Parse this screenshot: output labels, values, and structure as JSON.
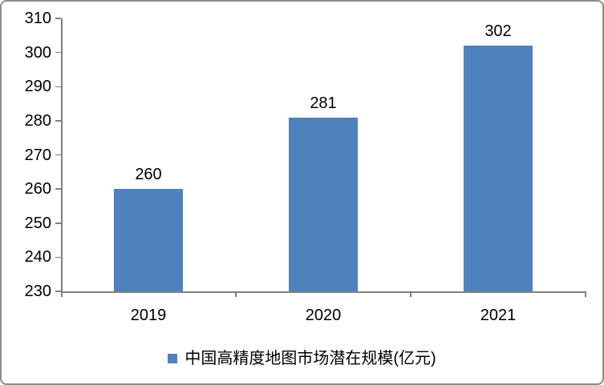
{
  "chart_data": {
    "type": "bar",
    "title": "",
    "categories": [
      "2019",
      "2020",
      "2021"
    ],
    "values": [
      260,
      281,
      302
    ],
    "data_labels": [
      "260",
      "281",
      "302"
    ],
    "legend": "中国高精度地图市场潜在规模(亿元)",
    "legend_position": "bottom-center",
    "xlabel": "",
    "ylabel": "",
    "ylim": [
      230,
      310
    ],
    "ytick_step": 10,
    "yticks": [
      230,
      240,
      250,
      260,
      270,
      280,
      290,
      300,
      310
    ],
    "grid": false,
    "show_data_labels": true,
    "colors": {
      "bar": "#4F81BD",
      "axis": "#808080",
      "text": "#000000",
      "frame_border": "#8C8C8C",
      "background": "#FFFFFF"
    }
  }
}
